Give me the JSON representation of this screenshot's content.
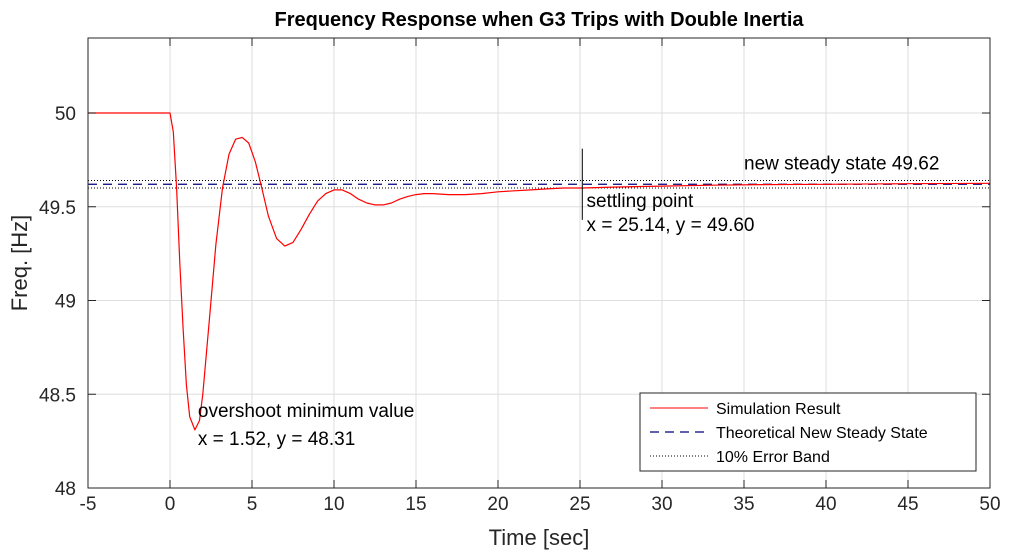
{
  "chart_data": {
    "type": "line",
    "title": "Frequency Response when G3 Trips with Double Inertia",
    "xlabel": "Time [sec]",
    "ylabel": "Freq. [Hz]",
    "xlim": [
      -5,
      50
    ],
    "ylim": [
      48,
      50.4
    ],
    "x_ticks": [
      -5,
      0,
      5,
      10,
      15,
      20,
      25,
      30,
      35,
      40,
      45,
      50
    ],
    "y_ticks": [
      48,
      48.5,
      49,
      49.5,
      50
    ],
    "y_tick_labels": [
      "48",
      "48.5",
      "49",
      "49.5",
      "50"
    ],
    "grid": true,
    "legend_position": "bottom-right",
    "series": [
      {
        "name": "Simulation Result",
        "style": "solid",
        "color": "#ff0000",
        "points": [
          [
            -5,
            50.0
          ],
          [
            0,
            50.0
          ],
          [
            0.2,
            49.9
          ],
          [
            0.4,
            49.6
          ],
          [
            0.6,
            49.2
          ],
          [
            0.8,
            48.85
          ],
          [
            1.0,
            48.55
          ],
          [
            1.2,
            48.38
          ],
          [
            1.52,
            48.31
          ],
          [
            1.8,
            48.36
          ],
          [
            2.0,
            48.5
          ],
          [
            2.4,
            48.9
          ],
          [
            2.8,
            49.3
          ],
          [
            3.2,
            49.6
          ],
          [
            3.6,
            49.78
          ],
          [
            4.0,
            49.86
          ],
          [
            4.4,
            49.87
          ],
          [
            4.8,
            49.84
          ],
          [
            5.2,
            49.74
          ],
          [
            5.6,
            49.6
          ],
          [
            6.0,
            49.45
          ],
          [
            6.5,
            49.33
          ],
          [
            7.0,
            49.29
          ],
          [
            7.5,
            49.31
          ],
          [
            8.0,
            49.38
          ],
          [
            8.5,
            49.46
          ],
          [
            9.0,
            49.53
          ],
          [
            9.5,
            49.57
          ],
          [
            10.0,
            49.59
          ],
          [
            10.5,
            49.59
          ],
          [
            11.0,
            49.57
          ],
          [
            11.5,
            49.54
          ],
          [
            12.0,
            49.52
          ],
          [
            12.5,
            49.51
          ],
          [
            13.0,
            49.51
          ],
          [
            13.5,
            49.52
          ],
          [
            14.0,
            49.54
          ],
          [
            14.5,
            49.555
          ],
          [
            15.0,
            49.565
          ],
          [
            15.5,
            49.57
          ],
          [
            16.0,
            49.57
          ],
          [
            17.0,
            49.565
          ],
          [
            18.0,
            49.565
          ],
          [
            19.0,
            49.57
          ],
          [
            20.0,
            49.58
          ],
          [
            21.0,
            49.585
          ],
          [
            22.0,
            49.59
          ],
          [
            23.0,
            49.595
          ],
          [
            24.0,
            49.6
          ],
          [
            25.14,
            49.6
          ],
          [
            27.0,
            49.605
          ],
          [
            30.0,
            49.61
          ],
          [
            33.0,
            49.615
          ],
          [
            36.0,
            49.618
          ],
          [
            40.0,
            49.62
          ],
          [
            45.0,
            49.623
          ],
          [
            50.0,
            49.625
          ]
        ]
      },
      {
        "name": "Theoretical New Steady State",
        "style": "dashed",
        "color": "#00007f",
        "y": 49.62
      },
      {
        "name": "10% Error Band",
        "style": "dotted",
        "color": "#000000",
        "y_values": [
          49.6,
          49.64
        ]
      }
    ],
    "markers": [
      {
        "type": "vertical-line",
        "x": 25.14,
        "y_range": [
          49.43,
          49.81
        ]
      }
    ],
    "annotations": [
      {
        "text": "overshoot minimum value",
        "x": 1.7,
        "y": 48.38
      },
      {
        "text": "x = 1.52, y = 48.31",
        "x": 1.7,
        "y": 48.23
      },
      {
        "text": "settling point",
        "x": 25.4,
        "y": 49.5
      },
      {
        "text": "x = 25.14, y = 49.60",
        "x": 25.4,
        "y": 49.37
      },
      {
        "text": "new steady state 49.62",
        "x": 35.0,
        "y": 49.7
      }
    ]
  }
}
